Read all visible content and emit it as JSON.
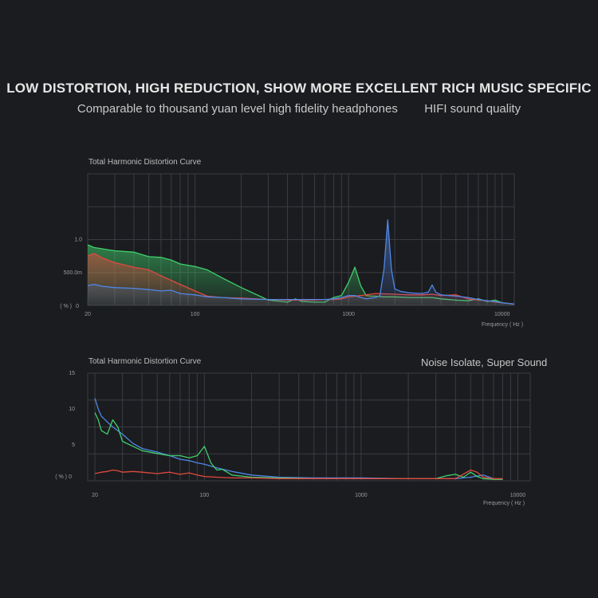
{
  "header": {
    "title": "LOW DISTORTION, HIGH REDUCTION, SHOW MORE EXCELLENT RICH MUSIC SPECIFIC",
    "subtitle_left": "Comparable to thousand yuan level high fidelity headphones",
    "subtitle_right": "HIFI sound quality"
  },
  "chart2_slogan": "Noise Isolate, Super Sound",
  "colors": {
    "green": "#3fcf6b",
    "red": "#e0493f",
    "blue": "#4f86e6",
    "grid": "#3a3c42",
    "bg": "#1b1c1f"
  },
  "chart_data": [
    {
      "type": "area",
      "title": "Total Harmonic Distortion Curve",
      "xlabel": "Frequency ( Hz )",
      "ylabel": "( % )",
      "x_scale": "log",
      "xlim": [
        20,
        12000
      ],
      "ylim": [
        0,
        2.0
      ],
      "x_ticks": [
        20,
        100,
        1000,
        10000
      ],
      "x_tick_labels": [
        "20",
        "100",
        "1000",
        "10000"
      ],
      "y_ticks": [
        0,
        0.5,
        1.0
      ],
      "y_tick_labels": [
        "0",
        "500.0m",
        "1.0"
      ],
      "grid": true,
      "series": [
        {
          "color": "green",
          "x": [
            20,
            22,
            25,
            30,
            40,
            50,
            60,
            70,
            80,
            100,
            120,
            150,
            200,
            300,
            400,
            450,
            500,
            600,
            700,
            800,
            900,
            1000,
            1100,
            1200,
            1300,
            1400,
            1500,
            1700,
            2000,
            2500,
            3000,
            3500,
            4000,
            5000,
            6000,
            7000,
            8000,
            9000,
            10000,
            12000
          ],
          "y": [
            0.92,
            0.88,
            0.86,
            0.83,
            0.81,
            0.74,
            0.73,
            0.69,
            0.63,
            0.59,
            0.54,
            0.42,
            0.27,
            0.08,
            0.05,
            0.1,
            0.06,
            0.05,
            0.05,
            0.12,
            0.15,
            0.35,
            0.58,
            0.3,
            0.15,
            0.14,
            0.14,
            0.13,
            0.13,
            0.12,
            0.12,
            0.12,
            0.1,
            0.08,
            0.07,
            0.1,
            0.06,
            0.08,
            0.04,
            0.02
          ]
        },
        {
          "color": "red",
          "x": [
            20,
            22,
            25,
            30,
            40,
            50,
            60,
            70,
            80,
            100,
            120,
            150,
            200,
            300,
            400,
            500,
            600,
            700,
            800,
            900,
            1000,
            1200,
            1500,
            2000,
            2500,
            3000,
            3500,
            4000,
            5000,
            6000,
            7000,
            8000,
            9000,
            10000,
            12000
          ],
          "y": [
            0.75,
            0.79,
            0.72,
            0.65,
            0.58,
            0.54,
            0.45,
            0.38,
            0.32,
            0.22,
            0.14,
            0.12,
            0.11,
            0.09,
            0.08,
            0.08,
            0.08,
            0.09,
            0.09,
            0.1,
            0.13,
            0.15,
            0.18,
            0.17,
            0.16,
            0.16,
            0.17,
            0.15,
            0.16,
            0.1,
            0.08,
            0.07,
            0.05,
            0.04,
            0.02
          ]
        },
        {
          "color": "blue",
          "x": [
            20,
            21,
            22,
            25,
            30,
            40,
            50,
            60,
            70,
            80,
            100,
            120,
            150,
            200,
            300,
            400,
            500,
            600,
            700,
            800,
            900,
            1000,
            1100,
            1200,
            1300,
            1500,
            1600,
            1700,
            1800,
            1900,
            2000,
            2200,
            2500,
            3000,
            3300,
            3500,
            3700,
            4000,
            5000,
            6000,
            7000,
            8000,
            9000,
            10000,
            12000
          ],
          "y": [
            0.3,
            0.31,
            0.32,
            0.29,
            0.27,
            0.26,
            0.24,
            0.22,
            0.23,
            0.18,
            0.16,
            0.13,
            0.12,
            0.1,
            0.09,
            0.09,
            0.09,
            0.09,
            0.09,
            0.1,
            0.12,
            0.15,
            0.15,
            0.12,
            0.1,
            0.12,
            0.15,
            0.55,
            1.3,
            0.55,
            0.25,
            0.21,
            0.19,
            0.18,
            0.2,
            0.31,
            0.2,
            0.16,
            0.14,
            0.12,
            0.09,
            0.07,
            0.06,
            0.04,
            0.02
          ]
        }
      ]
    },
    {
      "type": "line",
      "title": "Total Harmonic Distortion Curve",
      "xlabel": "Frequency ( Hz )",
      "ylabel": "( % )",
      "x_scale": "log",
      "xlim": [
        18,
        12000
      ],
      "ylim": [
        0,
        15
      ],
      "x_ticks": [
        20,
        100,
        1000,
        10000
      ],
      "x_tick_labels": [
        "20",
        "100",
        "1000",
        "10000"
      ],
      "y_ticks": [
        0,
        5,
        10,
        15
      ],
      "y_tick_labels": [
        "0",
        "5",
        "10",
        "15"
      ],
      "grid": true,
      "series": [
        {
          "color": "blue",
          "x": [
            20,
            21,
            22,
            24,
            26,
            30,
            35,
            40,
            50,
            60,
            70,
            80,
            90,
            100,
            120,
            150,
            200,
            300,
            500,
            1000,
            2000,
            3000,
            4000,
            5000,
            6000,
            7000,
            8000
          ],
          "y": [
            11.5,
            10.0,
            9.0,
            8.2,
            7.5,
            6.5,
            5.2,
            4.5,
            4.0,
            3.5,
            3.0,
            2.8,
            2.5,
            2.3,
            1.8,
            1.3,
            0.8,
            0.5,
            0.4,
            0.4,
            0.3,
            0.3,
            0.3,
            0.5,
            0.8,
            0.3,
            0.2
          ]
        },
        {
          "color": "green",
          "x": [
            20,
            21,
            22,
            24,
            26,
            28,
            30,
            35,
            40,
            50,
            60,
            70,
            80,
            90,
            100,
            110,
            120,
            130,
            150,
            200,
            300,
            500,
            1000,
            2000,
            3000,
            3500,
            4000,
            4500,
            5000,
            5500,
            6000,
            7000,
            8000
          ],
          "y": [
            9.5,
            8.5,
            7.0,
            6.5,
            8.5,
            7.5,
            5.5,
            4.8,
            4.2,
            3.8,
            3.5,
            3.5,
            3.2,
            3.5,
            4.8,
            2.5,
            1.5,
            1.6,
            0.8,
            0.5,
            0.4,
            0.3,
            0.3,
            0.3,
            0.3,
            0.7,
            0.9,
            0.5,
            1.2,
            0.6,
            0.3,
            0.2,
            0.2
          ]
        },
        {
          "color": "red",
          "x": [
            20,
            22,
            24,
            26,
            28,
            30,
            35,
            40,
            50,
            60,
            70,
            80,
            90,
            100,
            120,
            150,
            200,
            300,
            500,
            1000,
            2000,
            3000,
            4000,
            5000,
            5500,
            6000,
            7000,
            8000
          ],
          "y": [
            1.0,
            1.2,
            1.3,
            1.5,
            1.4,
            1.2,
            1.3,
            1.2,
            1.0,
            1.2,
            0.9,
            1.1,
            0.8,
            0.6,
            0.5,
            0.4,
            0.4,
            0.3,
            0.3,
            0.3,
            0.3,
            0.3,
            0.3,
            1.5,
            1.2,
            0.5,
            0.3,
            0.3
          ]
        }
      ]
    }
  ]
}
